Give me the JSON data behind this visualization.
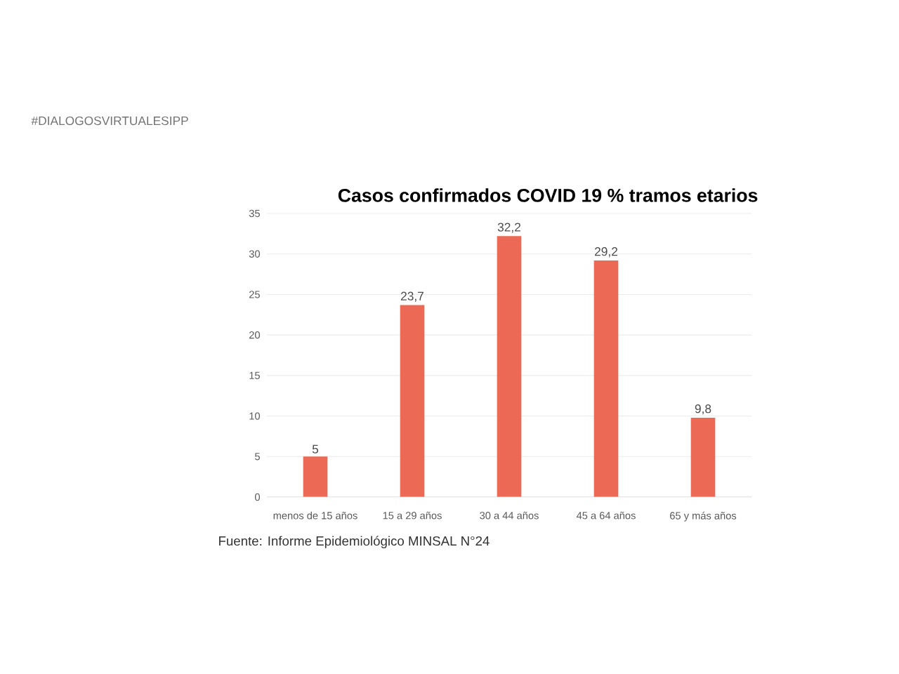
{
  "chart_data": {
    "type": "bar",
    "title": "Casos confirmados COVID 19 % tramos etarios",
    "categories": [
      "menos de 15 años",
      "15 a 29 años",
      "30 a 44 años",
      "45 a 64 años",
      "65 y más años"
    ],
    "values": [
      5,
      23.7,
      32.2,
      29.2,
      9.8
    ],
    "color": "#ec6a55",
    "ylim": [
      0,
      35
    ],
    "yticks": [
      0,
      5,
      10,
      15,
      20,
      25,
      30,
      35
    ],
    "grid": "y",
    "value_labels": [
      "5",
      "23,7",
      "32,2",
      "29,2",
      "9,8"
    ],
    "annotations": [
      "#DIALOGOSVIRTUALESIPP",
      "Fuente: Informe Epidemiológico MINSAL N°24"
    ]
  }
}
